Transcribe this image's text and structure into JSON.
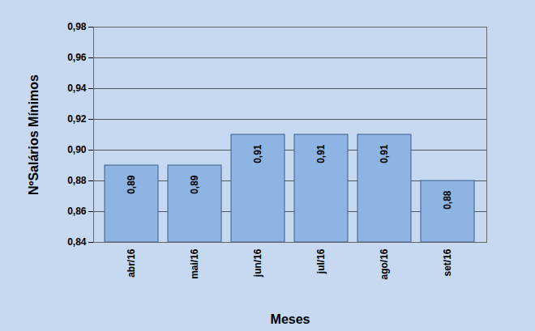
{
  "chart_data": {
    "type": "bar",
    "x_label": "Meses",
    "y_label": "NºSalários Mínimos",
    "categories": [
      "abr/16",
      "mai/16",
      "jun/16",
      "jul/16",
      "ago/16",
      "set/16"
    ],
    "values": [
      0.89,
      0.89,
      0.91,
      0.91,
      0.91,
      0.88
    ],
    "value_labels": [
      "0,89",
      "0,89",
      "0,91",
      "0,91",
      "0,91",
      "0,88"
    ],
    "color": "#8eb4e3",
    "ylim": [
      0.84,
      0.98
    ],
    "yticks": [
      {
        "value": 0.84,
        "label": "0,84"
      },
      {
        "value": 0.86,
        "label": "0,86"
      },
      {
        "value": 0.88,
        "label": "0,88"
      },
      {
        "value": 0.9,
        "label": "0,90"
      },
      {
        "value": 0.92,
        "label": "0,92"
      },
      {
        "value": 0.94,
        "label": "0,94"
      },
      {
        "value": 0.96,
        "label": "0,96"
      },
      {
        "value": 0.98,
        "label": "0,98"
      }
    ],
    "grid": true,
    "data_labels": true
  }
}
